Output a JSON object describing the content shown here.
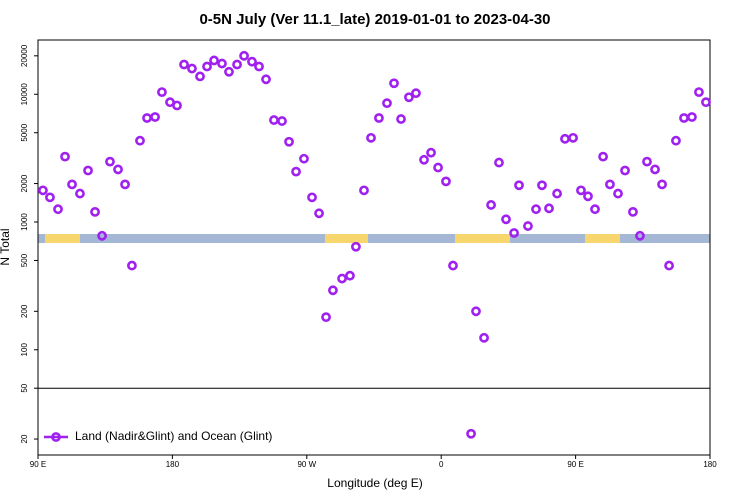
{
  "chart_data": {
    "type": "scatter",
    "title": "0-5N July (Ver 11.1_late)   2019-01-01 to 2023-04-30",
    "xlabel": "Longitude (deg E)",
    "ylabel": "N Total",
    "log_y": true,
    "legend": "bottom-left",
    "hline": 50,
    "xlim": [
      90,
      540
    ],
    "xticks": [
      {
        "value": 90,
        "label": "90 E"
      },
      180,
      {
        "value": 270,
        "label": "90 W"
      },
      {
        "value": 360,
        "label": "0"
      },
      {
        "value": 450,
        "label": "90 E"
      },
      {
        "value": 540,
        "label": "180"
      }
    ],
    "ylim": [
      15,
      26600
    ],
    "yticks": [
      20,
      50,
      100,
      200,
      500,
      1000,
      2000,
      5000,
      10000,
      20000
    ],
    "series": [
      {
        "name": "Land (Nadir&Glint) and Ocean (Glint)",
        "color": "#a020f0",
        "x": [
          93.3,
          98,
          103.4,
          108.1,
          112.8,
          118.1,
          123.5,
          128.2,
          132.9,
          138.2,
          143.6,
          148.3,
          152.9,
          158.3,
          163,
          168.4,
          173,
          178.4,
          183.1,
          187.8,
          193.1,
          198.5,
          203.2,
          207.9,
          213.2,
          217.9,
          223.3,
          228,
          233.3,
          238,
          242.7,
          248,
          253.4,
          258.1,
          262.8,
          268.1,
          273.5,
          278.2,
          282.9,
          287.5,
          293.6,
          298.9,
          302.9,
          308.3,
          313,
          318.3,
          323.7,
          328.4,
          333.1,
          338.4,
          343.1,
          348.5,
          353.2,
          357.9,
          363.2,
          367.9,
          380,
          383.3,
          388.7,
          393.4,
          398.7,
          403.4,
          408.8,
          412.1,
          418.1,
          423.5,
          427.5,
          432.2,
          437.6,
          442.9,
          448.3,
          453.6,
          458.3,
          463,
          468.4,
          473,
          478.4,
          483.1,
          488.4,
          493.1,
          497.8,
          503.2,
          507.9,
          512.6,
          517.2,
          522.6,
          527.9,
          532.6,
          537.3
        ],
        "values": [
          1770,
          1560,
          1260,
          3250,
          1970,
          1670,
          2530,
          1200,
          780,
          2970,
          2580,
          1970,
          456,
          4330,
          6520,
          6640,
          10400,
          8670,
          8170,
          17100,
          15900,
          13800,
          16500,
          18400,
          17400,
          15000,
          17100,
          20000,
          18000,
          16500,
          13100,
          6280,
          6170,
          4250,
          2480,
          3130,
          1560,
          1170,
          180,
          292,
          361,
          380,
          640,
          1770,
          4560,
          6520,
          8520,
          12200,
          6400,
          9480,
          10200,
          3070,
          3490,
          2670,
          2080,
          456,
          22,
          200,
          124,
          1360,
          2920,
          1050,
          820,
          1940,
          930,
          1260,
          1940,
          1280,
          1670,
          4480,
          4560,
          1770,
          1590,
          1260,
          3250,
          1970,
          1670,
          2530,
          1200,
          780,
          2970,
          2580,
          1970,
          456,
          4330,
          6520,
          6640,
          10400,
          8670
        ]
      }
    ]
  }
}
